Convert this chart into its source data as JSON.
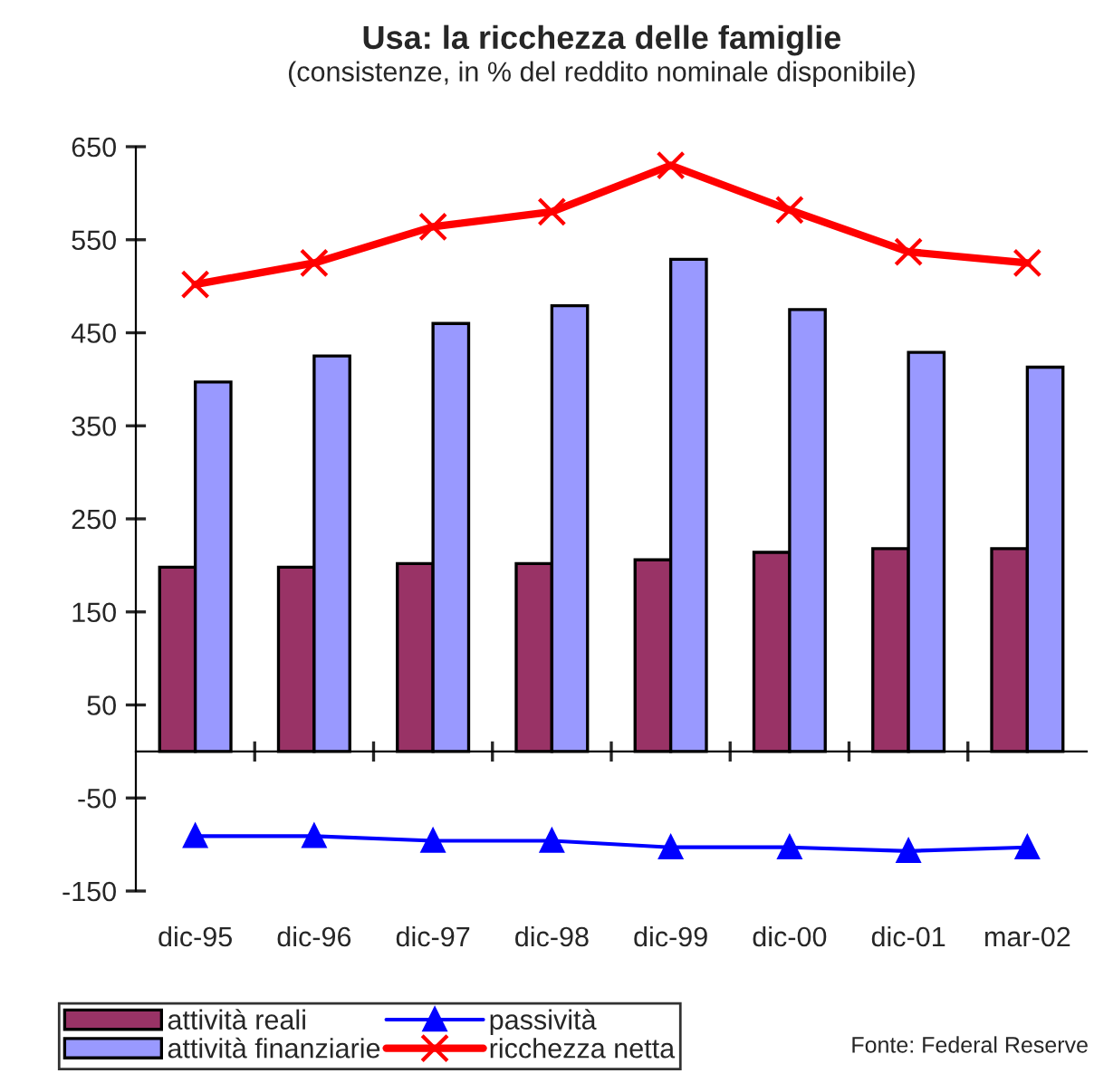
{
  "chart_data": {
    "type": "bar",
    "title": "Usa: la ricchezza delle famiglie",
    "subtitle": "(consistenze, in % del reddito nominale disponibile)",
    "categories": [
      "dic-95",
      "dic-96",
      "dic-97",
      "dic-98",
      "dic-99",
      "dic-00",
      "dic-01",
      "mar-02"
    ],
    "series": [
      {
        "name": "attività reali",
        "color": "#993366",
        "values": [
          198,
          198,
          202,
          202,
          206,
          214,
          218,
          218
        ]
      },
      {
        "name": "attività finanziarie",
        "color": "#9999ff",
        "values": [
          397,
          425,
          460,
          479,
          529,
          475,
          429,
          413
        ]
      },
      {
        "name": "passività",
        "type": "line",
        "color": "#0000ff",
        "marker": "triangle",
        "values": [
          -91,
          -91,
          -96,
          -96,
          -103,
          -103,
          -107,
          -103
        ]
      },
      {
        "name": "ricchezza netta",
        "type": "line",
        "color": "#ff0000",
        "marker": "cross",
        "values": [
          502,
          525,
          564,
          580,
          630,
          582,
          537,
          525
        ]
      }
    ],
    "ylim": [
      -150,
      650
    ],
    "yticks": [
      -150,
      -50,
      50,
      150,
      250,
      350,
      450,
      550,
      650
    ],
    "grid": false,
    "legend": "bottom",
    "annotations": [
      "Fonte: Federal Reserve"
    ]
  }
}
